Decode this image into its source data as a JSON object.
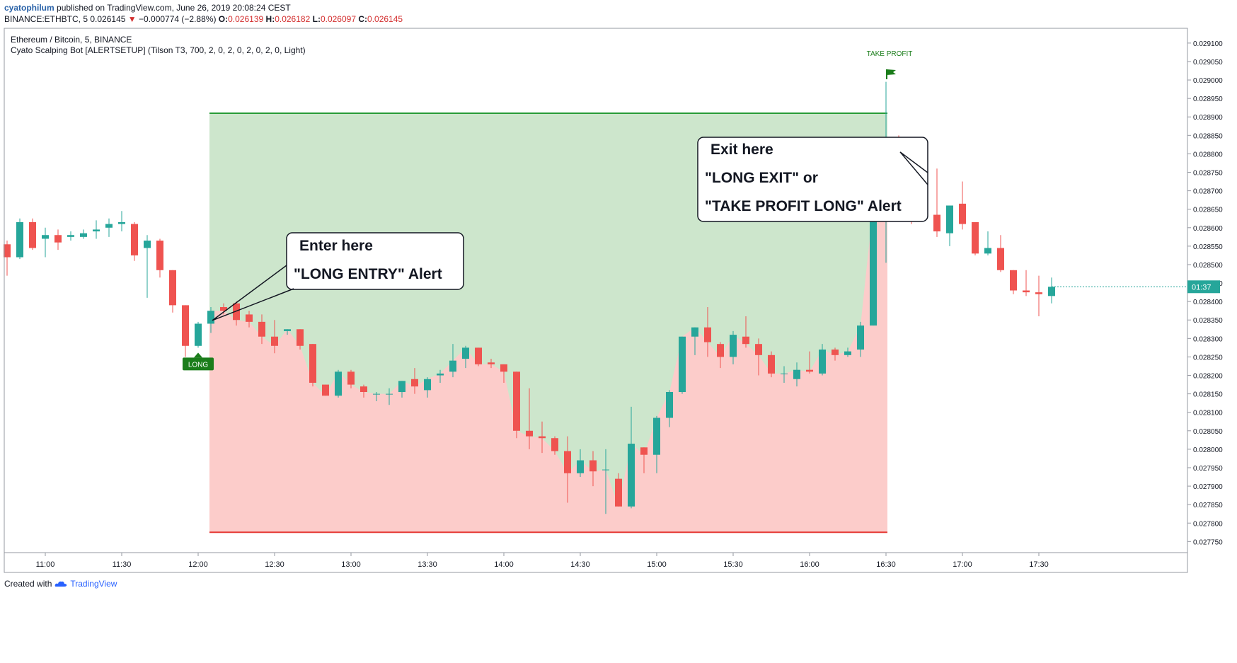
{
  "header": {
    "author": "cyatophilum",
    "published_text": "published on TradingView.com, June 26, 2019 20:08:24 CEST",
    "symbol_line": "BINANCE:ETHBTC, 5",
    "last": "0.026145",
    "change": "−0.000774 (−2.88%)",
    "o_label": "O:",
    "o": "0.026139",
    "h_label": "H:",
    "h": "0.026182",
    "l_label": "L:",
    "l": "0.026097",
    "c_label": "C:",
    "c": "0.026145"
  },
  "chart_data": {
    "type": "candlestick",
    "title": "Ethereum / Bitcoin, 5, BINANCE",
    "indicator": "Cyato Scalping Bot [ALERTSETUP] (Tilson T3, 700, 2, 0, 2, 0, 2, 0, 2, 0, Light)",
    "y_ticks": [
      "0.029100",
      "0.029050",
      "0.029000",
      "0.028950",
      "0.028900",
      "0.028850",
      "0.028800",
      "0.028750",
      "0.028700",
      "0.028650",
      "0.028600",
      "0.028550",
      "0.028500",
      "0.028450",
      "0.028400",
      "0.028350",
      "0.028300",
      "0.028250",
      "0.028200",
      "0.028150",
      "0.028100",
      "0.028050",
      "0.028000",
      "0.027950",
      "0.027900",
      "0.027850",
      "0.027800",
      "0.027750"
    ],
    "x_ticks": [
      "11:00",
      "11:30",
      "12:00",
      "12:30",
      "13:00",
      "13:30",
      "14:00",
      "14:30",
      "15:00",
      "15:30",
      "16:00",
      "16:30",
      "17:00",
      "17:30"
    ],
    "ylim": [
      0.02772,
      0.02914
    ],
    "last_price_label": "01:37",
    "candles": [
      [
        0.028555,
        0.028565,
        0.02847,
        0.02852
      ],
      [
        0.02852,
        0.028625,
        0.028515,
        0.028615
      ],
      [
        0.028615,
        0.028625,
        0.02854,
        0.028545
      ],
      [
        0.02857,
        0.0286,
        0.02852,
        0.02858
      ],
      [
        0.02858,
        0.028595,
        0.02854,
        0.02856
      ],
      [
        0.028575,
        0.02859,
        0.028565,
        0.02858
      ],
      [
        0.028575,
        0.028595,
        0.02857,
        0.028585
      ],
      [
        0.02859,
        0.02862,
        0.02857,
        0.028595
      ],
      [
        0.0286,
        0.028625,
        0.028575,
        0.02861
      ],
      [
        0.02861,
        0.028645,
        0.02859,
        0.028615
      ],
      [
        0.02861,
        0.028615,
        0.02851,
        0.028525
      ],
      [
        0.028545,
        0.02858,
        0.02841,
        0.028565
      ],
      [
        0.028565,
        0.02857,
        0.028465,
        0.028485
      ],
      [
        0.028485,
        0.028485,
        0.02837,
        0.02839
      ],
      [
        0.02839,
        0.02839,
        0.02825,
        0.02828
      ],
      [
        0.02828,
        0.028345,
        0.028275,
        0.02834
      ],
      [
        0.02834,
        0.028385,
        0.028315,
        0.028375
      ],
      [
        0.028385,
        0.028395,
        0.028365,
        0.028375
      ],
      [
        0.028395,
        0.0284,
        0.028335,
        0.02835
      ],
      [
        0.028365,
        0.028375,
        0.02833,
        0.028345
      ],
      [
        0.028345,
        0.028365,
        0.028285,
        0.028305
      ],
      [
        0.028305,
        0.02835,
        0.02826,
        0.02828
      ],
      [
        0.02832,
        0.028325,
        0.02831,
        0.028325
      ],
      [
        0.028325,
        0.028325,
        0.02827,
        0.02828
      ],
      [
        0.028285,
        0.028285,
        0.02817,
        0.02818
      ],
      [
        0.028175,
        0.028175,
        0.028145,
        0.028145
      ],
      [
        0.028145,
        0.028215,
        0.02814,
        0.02821
      ],
      [
        0.02821,
        0.028215,
        0.028165,
        0.028175
      ],
      [
        0.02817,
        0.028175,
        0.02814,
        0.028155
      ],
      [
        0.02815,
        0.028155,
        0.02813,
        0.02815
      ],
      [
        0.02815,
        0.028165,
        0.02812,
        0.02815
      ],
      [
        0.028155,
        0.028185,
        0.02814,
        0.028185
      ],
      [
        0.02819,
        0.02822,
        0.02815,
        0.02817
      ],
      [
        0.02816,
        0.028195,
        0.02814,
        0.02819
      ],
      [
        0.0282,
        0.028215,
        0.02818,
        0.028205
      ],
      [
        0.02821,
        0.028285,
        0.028195,
        0.02824
      ],
      [
        0.028245,
        0.02828,
        0.02822,
        0.028275
      ],
      [
        0.028275,
        0.028275,
        0.028225,
        0.02823
      ],
      [
        0.028235,
        0.028245,
        0.02822,
        0.02823
      ],
      [
        0.02823,
        0.02823,
        0.02818,
        0.02821
      ],
      [
        0.02821,
        0.02821,
        0.02803,
        0.02805
      ],
      [
        0.02805,
        0.028165,
        0.028,
        0.028035
      ],
      [
        0.028035,
        0.028075,
        0.02799,
        0.02803
      ],
      [
        0.02803,
        0.028035,
        0.027985,
        0.027995
      ],
      [
        0.027995,
        0.028035,
        0.027855,
        0.027935
      ],
      [
        0.027935,
        0.028,
        0.027925,
        0.02797
      ],
      [
        0.02797,
        0.027995,
        0.0279,
        0.02794
      ],
      [
        0.027945,
        0.028,
        0.027825,
        0.027945
      ],
      [
        0.02792,
        0.027935,
        0.027845,
        0.027845
      ],
      [
        0.027845,
        0.028115,
        0.02784,
        0.028015
      ],
      [
        0.028005,
        0.028005,
        0.027935,
        0.027985
      ],
      [
        0.027985,
        0.02809,
        0.027935,
        0.028085
      ],
      [
        0.028085,
        0.02816,
        0.02806,
        0.028155
      ],
      [
        0.028155,
        0.028305,
        0.02815,
        0.028305
      ],
      [
        0.028305,
        0.02833,
        0.028255,
        0.02833
      ],
      [
        0.02833,
        0.028385,
        0.02825,
        0.02829
      ],
      [
        0.028285,
        0.02829,
        0.02822,
        0.02825
      ],
      [
        0.02825,
        0.02832,
        0.02823,
        0.02831
      ],
      [
        0.028305,
        0.02836,
        0.028275,
        0.028285
      ],
      [
        0.028285,
        0.0283,
        0.0282,
        0.028255
      ],
      [
        0.028255,
        0.028265,
        0.028195,
        0.028205
      ],
      [
        0.028205,
        0.028225,
        0.02818,
        0.028205
      ],
      [
        0.02819,
        0.028235,
        0.02817,
        0.028215
      ],
      [
        0.028215,
        0.028265,
        0.028205,
        0.02821
      ],
      [
        0.028205,
        0.028285,
        0.0282,
        0.02827
      ],
      [
        0.02827,
        0.028275,
        0.02824,
        0.028255
      ],
      [
        0.028255,
        0.028275,
        0.02825,
        0.028265
      ],
      [
        0.02827,
        0.028345,
        0.02825,
        0.028335
      ],
      [
        0.028335,
        0.02877,
        0.028335,
        0.02866
      ],
      [
        0.02866,
        0.028995,
        0.028505,
        0.028805
      ],
      [
        0.028805,
        0.02885,
        0.02873,
        0.02879
      ],
      [
        0.028765,
        0.028785,
        0.02861,
        0.028695
      ],
      [
        0.028695,
        0.02878,
        0.02862,
        0.028635
      ],
      [
        0.028635,
        0.02876,
        0.028575,
        0.02859
      ],
      [
        0.028585,
        0.02866,
        0.02855,
        0.02866
      ],
      [
        0.028665,
        0.028725,
        0.028595,
        0.02861
      ],
      [
        0.028615,
        0.028615,
        0.028525,
        0.02853
      ],
      [
        0.02853,
        0.02859,
        0.028525,
        0.028545
      ],
      [
        0.028545,
        0.02858,
        0.02848,
        0.028485
      ],
      [
        0.028485,
        0.028485,
        0.02842,
        0.02843
      ],
      [
        0.02843,
        0.028485,
        0.028415,
        0.028425
      ],
      [
        0.028425,
        0.02847,
        0.02836,
        0.02842
      ],
      [
        0.028415,
        0.028465,
        0.028395,
        0.02844
      ]
    ],
    "markers": {
      "entry_label": "LONG",
      "take_profit_label": "TAKE PROFIT"
    },
    "position": {
      "entry_price": 0.028345,
      "profit_price": 0.02891,
      "stop_price": 0.027775
    },
    "callouts": [
      {
        "lines": [
          "Enter here",
          "\"LONG ENTRY\" Alert"
        ]
      },
      {
        "lines": [
          "Exit here",
          "\"LONG EXIT\" or",
          "\"TAKE PROFIT LONG\" Alert"
        ]
      }
    ],
    "colors": {
      "up": "#26a69a",
      "down": "#ef5350",
      "profit_zone": "#cde6cc",
      "loss_zone": "#fcccca",
      "profit_line": "#279b37",
      "stop_line": "#e53935",
      "marker_green": "#1b7d1b",
      "last_price_bg": "#26a69a"
    }
  },
  "footer": {
    "created_with": "Created with",
    "brand": "TradingView"
  }
}
